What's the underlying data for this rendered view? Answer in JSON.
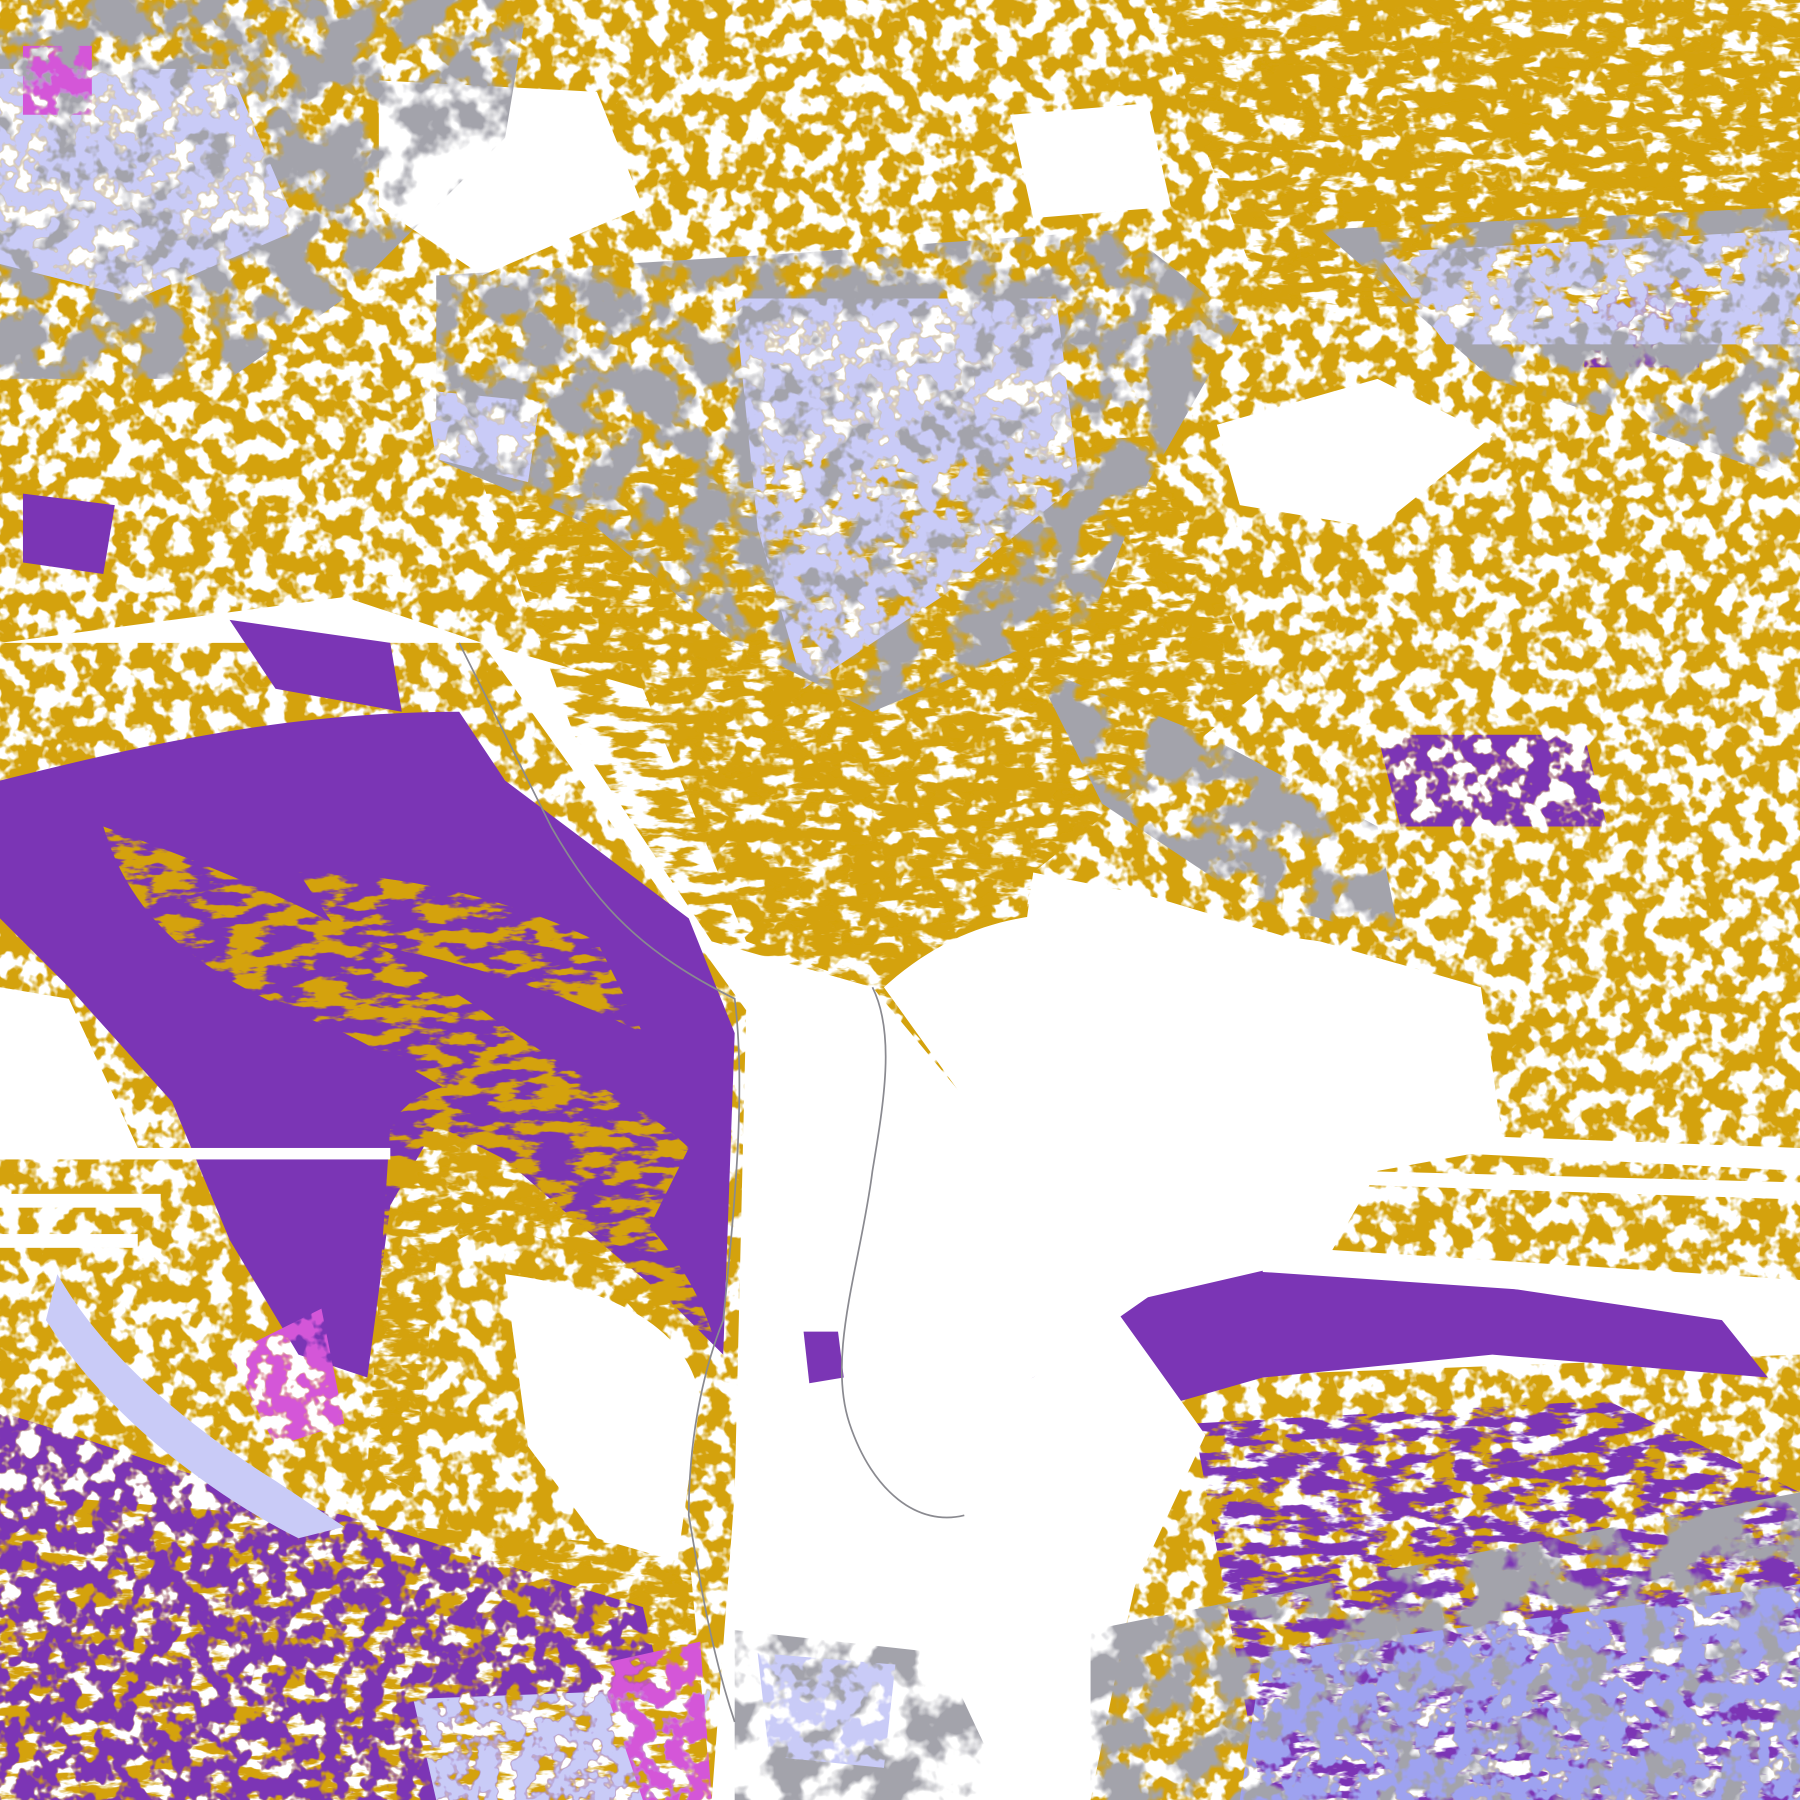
{
  "map": {
    "colors": {
      "background": "#ffffff",
      "low_cloud": "#d4a20c",
      "mid_cloud": "#7b35b5",
      "high_cloud_gray": "#a3a3ab",
      "high_cloud_light": "#c9cbf7",
      "high_cloud_blue": "#9ea2f0",
      "deep_convection": "#d457d8",
      "coastline": "#8a8a90"
    }
  }
}
